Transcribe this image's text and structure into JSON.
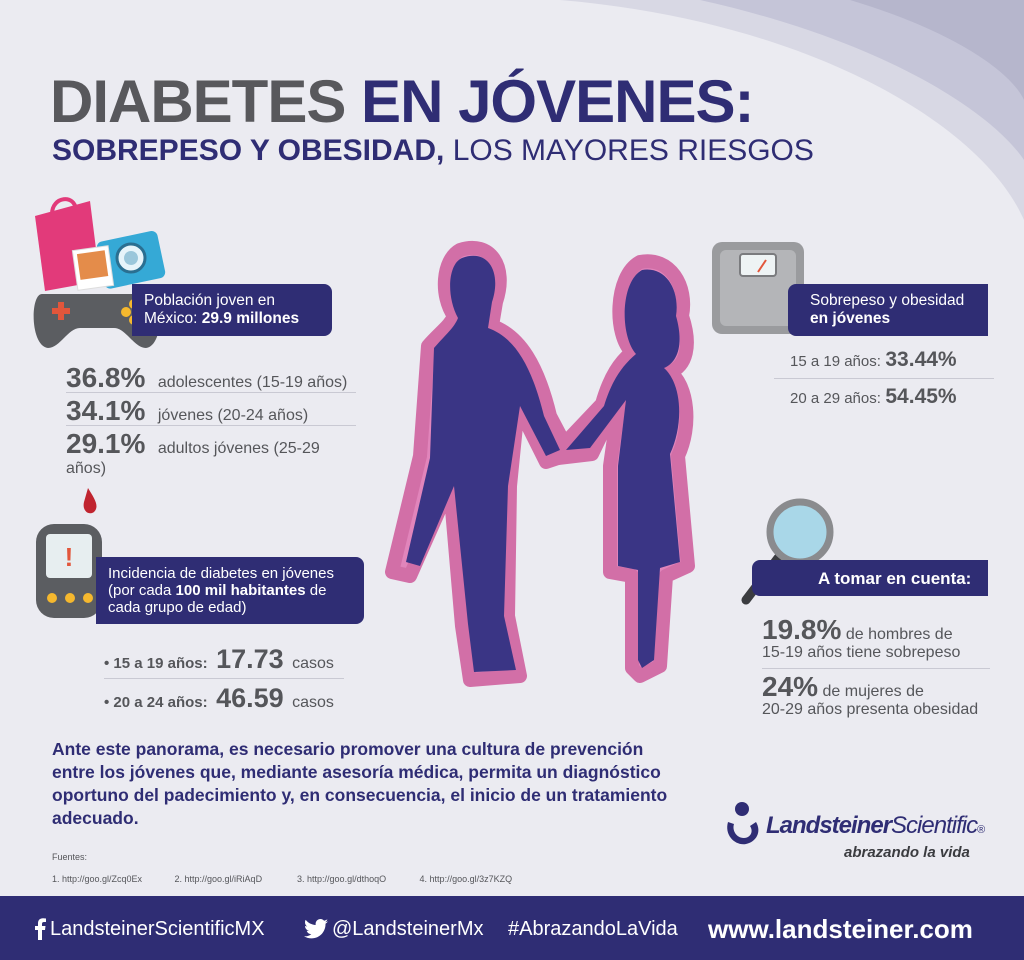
{
  "title": {
    "line1_part1": "DIABETES",
    "line1_part2": "EN JÓVENES:",
    "line2_bold": "SOBREPESO Y OBESIDAD,",
    "line2_rest": "LOS MAYORES RIESGOS"
  },
  "population": {
    "banner_line1": "Población joven en",
    "banner_line2_prefix": "México: ",
    "banner_line2_value": "29.9 millones",
    "rows": [
      {
        "pct": "36.8%",
        "label": "adolescentes (15-19 años)"
      },
      {
        "pct": "34.1%",
        "label": "jóvenes (20-24 años)"
      },
      {
        "pct": "29.1%",
        "label": "adultos jóvenes (25-29 años)"
      }
    ]
  },
  "overweight": {
    "banner_line1": "Sobrepeso y obesidad",
    "banner_line2": "en jóvenes",
    "rows": [
      {
        "label": "15 a 19 años:",
        "value": "33.44%"
      },
      {
        "label": "20 a 29 años:",
        "value": "54.45%"
      }
    ]
  },
  "incidence": {
    "banner_line1": "Incidencia de diabetes en jóvenes",
    "banner_line2_prefix": "(por cada ",
    "banner_line2_bold": "100 mil habitantes",
    "banner_line2_suffix": " de",
    "banner_line3": "cada grupo de edad)",
    "rows": [
      {
        "label": "• 15 a 19 años:",
        "value": "17.73",
        "unit": "casos"
      },
      {
        "label": "• 20 a 24 años:",
        "value": "46.59",
        "unit": "casos"
      }
    ]
  },
  "consider": {
    "banner": "A tomar en cuenta:",
    "item1_value": "19.8%",
    "item1_text1": "de hombres de",
    "item1_text2": "15-19 años tiene sobrepeso",
    "item2_value": "24%",
    "item2_text1": "de mujeres de",
    "item2_text2": "20-29 años presenta obesidad"
  },
  "conclusion": {
    "line1": "Ante este panorama, es necesario promover una cultura de prevención",
    "line2": "entre los jóvenes que, mediante asesoría médica, permita un diagnóstico",
    "line3": "oportuno del padecimiento y, en consecuencia, el inicio de un tratamiento",
    "line4": "adecuado."
  },
  "sources": {
    "heading": "Fuentes:",
    "items": [
      "1. http://goo.gl/Zcq0Ex",
      "2. http://goo.gl/iRiAqD",
      "3. http://goo.gl/dthoqO",
      "4. http://goo.gl/3z7KZQ"
    ]
  },
  "brand": {
    "name_bold": "Landsteiner",
    "name_light": "Scientific",
    "registered": "®",
    "tagline": "abrazando la vida"
  },
  "footer": {
    "facebook": "LandsteinerScientificMX",
    "twitter": "@LandsteinerMx",
    "hashtag": "#AbrazandoLaVida",
    "website": "www.landsteiner.com"
  },
  "colors": {
    "navy": "#2f2d74",
    "gray": "#55565a",
    "pink_outline": "#d0629f",
    "background": "#ebebf1"
  }
}
